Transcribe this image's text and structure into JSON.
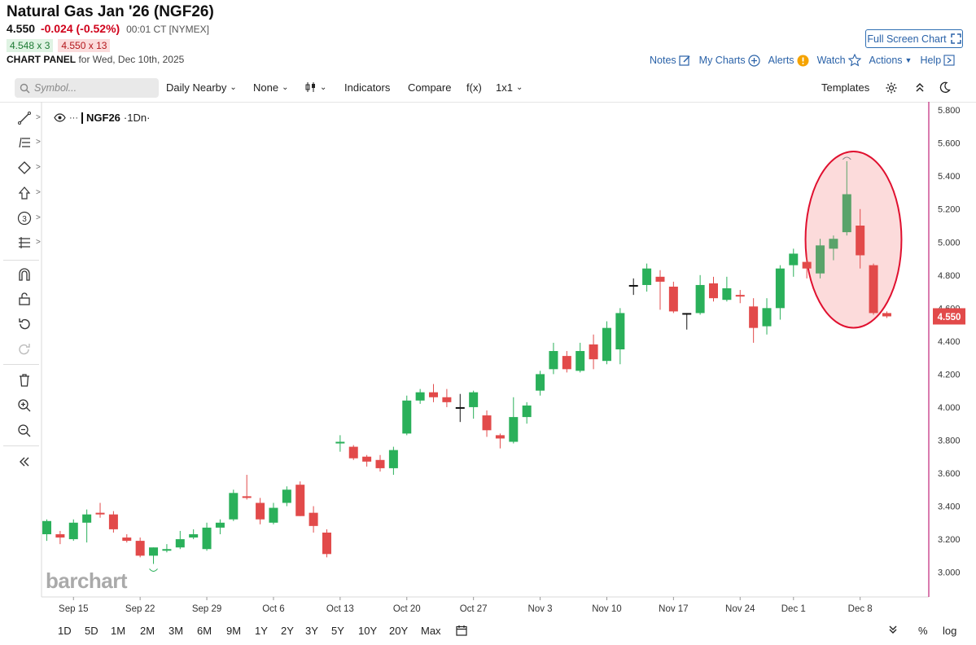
{
  "header": {
    "title": "Natural Gas Jan '26 (NGF26)",
    "last": "4.550",
    "change": "-0.024 (-0.52%)",
    "time": "00:01 CT [NYMEX]",
    "bid": "4.548 x 3",
    "ask": "4.550 x 13",
    "panel_label": "CHART PANEL",
    "panel_date": "for Wed, Dec 10th, 2025",
    "full_screen": "Full Screen Chart"
  },
  "actions": {
    "notes": "Notes",
    "my_charts": "My Charts",
    "alerts": "Alerts",
    "watch": "Watch",
    "actions": "Actions",
    "help": "Help"
  },
  "toolbar": {
    "symbol_placeholder": "Symbol...",
    "period": "Daily Nearby",
    "none": "None",
    "indicators": "Indicators",
    "compare": "Compare",
    "fx": "f(x)",
    "layout": "1x1",
    "templates": "Templates"
  },
  "legend": {
    "symbol": "NGF26",
    "interval": "·1Dn·"
  },
  "logo": "barchart",
  "ranges": [
    "1D",
    "5D",
    "1M",
    "2M",
    "3M",
    "6M",
    "9M",
    "1Y",
    "2Y",
    "3Y",
    "5Y",
    "10Y",
    "20Y",
    "Max"
  ],
  "bottom_right": {
    "pct": "%",
    "log": "log"
  },
  "colors": {
    "up": "#2ab05a",
    "down": "#e24a4a",
    "highlight_up": "#5aa36a",
    "circle": "#e0102f",
    "axis_line": "#c0267a"
  },
  "chart_data": {
    "type": "candlestick",
    "title": "Natural Gas Jan '26 (NGF26)",
    "ylim": [
      2.85,
      5.85
    ],
    "y_ticks": [
      "5.800",
      "5.600",
      "5.400",
      "5.200",
      "5.000",
      "4.800",
      "4.600",
      "4.400",
      "4.200",
      "4.000",
      "3.800",
      "3.600",
      "3.400",
      "3.200",
      "3.000"
    ],
    "x_ticks": [
      {
        "label": "Sep 15",
        "index": 2
      },
      {
        "label": "Sep 22",
        "index": 7
      },
      {
        "label": "Sep 29",
        "index": 12
      },
      {
        "label": "Oct 6",
        "index": 17
      },
      {
        "label": "Oct 13",
        "index": 22
      },
      {
        "label": "Oct 20",
        "index": 27
      },
      {
        "label": "Oct 27",
        "index": 32
      },
      {
        "label": "Nov 3",
        "index": 37
      },
      {
        "label": "Nov 10",
        "index": 42
      },
      {
        "label": "Nov 17",
        "index": 47
      },
      {
        "label": "Nov 24",
        "index": 52
      },
      {
        "label": "Dec 1",
        "index": 56
      },
      {
        "label": "Dec 8",
        "index": 61
      }
    ],
    "last_price": "4.550",
    "highlight": {
      "from_index": 58,
      "to_index": 63,
      "shape": "ellipse",
      "marker": "recent spike and reversal"
    },
    "candles": [
      {
        "o": 3.23,
        "h": 3.32,
        "l": 3.19,
        "c": 3.31
      },
      {
        "o": 3.23,
        "h": 3.25,
        "l": 3.17,
        "c": 3.21
      },
      {
        "o": 3.2,
        "h": 3.32,
        "l": 3.19,
        "c": 3.3
      },
      {
        "o": 3.3,
        "h": 3.38,
        "l": 3.18,
        "c": 3.35
      },
      {
        "o": 3.36,
        "h": 3.42,
        "l": 3.33,
        "c": 3.35
      },
      {
        "o": 3.35,
        "h": 3.37,
        "l": 3.24,
        "c": 3.26
      },
      {
        "o": 3.21,
        "h": 3.23,
        "l": 3.18,
        "c": 3.19
      },
      {
        "o": 3.19,
        "h": 3.21,
        "l": 3.09,
        "c": 3.1
      },
      {
        "o": 3.1,
        "h": 3.15,
        "l": 3.05,
        "c": 3.15
      },
      {
        "o": 3.13,
        "h": 3.17,
        "l": 3.12,
        "c": 3.14
      },
      {
        "o": 3.15,
        "h": 3.25,
        "l": 3.14,
        "c": 3.2
      },
      {
        "o": 3.21,
        "h": 3.26,
        "l": 3.2,
        "c": 3.23
      },
      {
        "o": 3.14,
        "h": 3.3,
        "l": 3.13,
        "c": 3.27
      },
      {
        "o": 3.27,
        "h": 3.32,
        "l": 3.23,
        "c": 3.3
      },
      {
        "o": 3.32,
        "h": 3.5,
        "l": 3.31,
        "c": 3.48
      },
      {
        "o": 3.46,
        "h": 3.59,
        "l": 3.44,
        "c": 3.45
      },
      {
        "o": 3.42,
        "h": 3.45,
        "l": 3.29,
        "c": 3.32
      },
      {
        "o": 3.3,
        "h": 3.42,
        "l": 3.29,
        "c": 3.39
      },
      {
        "o": 3.42,
        "h": 3.52,
        "l": 3.4,
        "c": 3.5
      },
      {
        "o": 3.53,
        "h": 3.55,
        "l": 3.34,
        "c": 3.34
      },
      {
        "o": 3.36,
        "h": 3.4,
        "l": 3.24,
        "c": 3.28
      },
      {
        "o": 3.24,
        "h": 3.26,
        "l": 3.09,
        "c": 3.11
      },
      {
        "o": 3.78,
        "h": 3.83,
        "l": 3.73,
        "c": 3.79
      },
      {
        "o": 3.76,
        "h": 3.77,
        "l": 3.68,
        "c": 3.69
      },
      {
        "o": 3.7,
        "h": 3.71,
        "l": 3.64,
        "c": 3.67
      },
      {
        "o": 3.68,
        "h": 3.71,
        "l": 3.61,
        "c": 3.63
      },
      {
        "o": 3.63,
        "h": 3.76,
        "l": 3.59,
        "c": 3.74
      },
      {
        "o": 3.84,
        "h": 4.07,
        "l": 3.83,
        "c": 4.04
      },
      {
        "o": 4.04,
        "h": 4.11,
        "l": 4.02,
        "c": 4.09
      },
      {
        "o": 4.09,
        "h": 4.14,
        "l": 4.03,
        "c": 4.06
      },
      {
        "o": 4.06,
        "h": 4.11,
        "l": 4.0,
        "c": 4.03
      },
      {
        "o": 4.0,
        "h": 4.08,
        "l": 3.91,
        "c": 4.0
      },
      {
        "o": 4.0,
        "h": 4.1,
        "l": 3.93,
        "c": 4.09
      },
      {
        "o": 3.95,
        "h": 3.98,
        "l": 3.82,
        "c": 3.86
      },
      {
        "o": 3.83,
        "h": 3.84,
        "l": 3.75,
        "c": 3.81
      },
      {
        "o": 3.79,
        "h": 4.06,
        "l": 3.78,
        "c": 3.94
      },
      {
        "o": 3.94,
        "h": 4.03,
        "l": 3.9,
        "c": 4.01
      },
      {
        "o": 4.1,
        "h": 4.22,
        "l": 4.07,
        "c": 4.2
      },
      {
        "o": 4.23,
        "h": 4.39,
        "l": 4.2,
        "c": 4.34
      },
      {
        "o": 4.31,
        "h": 4.34,
        "l": 4.21,
        "c": 4.23
      },
      {
        "o": 4.22,
        "h": 4.39,
        "l": 4.21,
        "c": 4.34
      },
      {
        "o": 4.38,
        "h": 4.44,
        "l": 4.23,
        "c": 4.29
      },
      {
        "o": 4.28,
        "h": 4.52,
        "l": 4.26,
        "c": 4.48
      },
      {
        "o": 4.35,
        "h": 4.6,
        "l": 4.26,
        "c": 4.57
      },
      {
        "o": 4.74,
        "h": 4.78,
        "l": 4.68,
        "c": 4.74
      },
      {
        "o": 4.74,
        "h": 4.87,
        "l": 4.7,
        "c": 4.84
      },
      {
        "o": 4.79,
        "h": 4.83,
        "l": 4.59,
        "c": 4.76
      },
      {
        "o": 4.73,
        "h": 4.76,
        "l": 4.57,
        "c": 4.58
      },
      {
        "o": 4.57,
        "h": 4.57,
        "l": 4.47,
        "c": 4.57
      },
      {
        "o": 4.57,
        "h": 4.8,
        "l": 4.56,
        "c": 4.74
      },
      {
        "o": 4.75,
        "h": 4.79,
        "l": 4.64,
        "c": 4.66
      },
      {
        "o": 4.65,
        "h": 4.79,
        "l": 4.64,
        "c": 4.72
      },
      {
        "o": 4.68,
        "h": 4.71,
        "l": 4.63,
        "c": 4.67
      },
      {
        "o": 4.61,
        "h": 4.66,
        "l": 4.39,
        "c": 4.48
      },
      {
        "o": 4.49,
        "h": 4.66,
        "l": 4.44,
        "c": 4.6
      },
      {
        "o": 4.6,
        "h": 4.86,
        "l": 4.53,
        "c": 4.84
      },
      {
        "o": 4.86,
        "h": 4.96,
        "l": 4.79,
        "c": 4.93
      },
      {
        "o": 4.88,
        "h": 4.92,
        "l": 4.78,
        "c": 4.84
      },
      {
        "o": 4.81,
        "h": 5.02,
        "l": 4.78,
        "c": 4.98
      },
      {
        "o": 4.96,
        "h": 5.04,
        "l": 4.89,
        "c": 5.02
      },
      {
        "o": 5.06,
        "h": 5.49,
        "l": 5.04,
        "c": 5.29
      },
      {
        "o": 5.1,
        "h": 5.2,
        "l": 4.84,
        "c": 4.92
      },
      {
        "o": 4.86,
        "h": 4.87,
        "l": 4.56,
        "c": 4.57
      },
      {
        "o": 4.57,
        "h": 4.58,
        "l": 4.54,
        "c": 4.55
      }
    ]
  }
}
